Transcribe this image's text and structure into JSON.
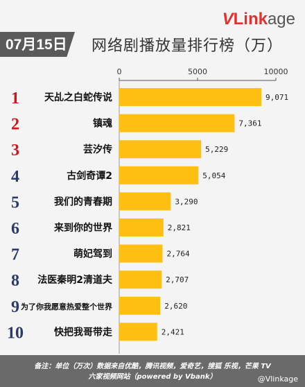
{
  "date_label": "07月15日",
  "logo": {
    "brand_v": "V",
    "brand_link": "Link",
    "brand_age": "age"
  },
  "footer": {
    "line1": "备注：单位（万次）数据来自优酷，腾讯视频，爱奇艺，搜狐 乐视，芒果 TV",
    "line2": "六家视频网站（powered by Vbank）",
    "watermark": "@Vlinkage"
  },
  "colors": {
    "bar": "#fcbf12",
    "rank_red": "#d0141c",
    "rank_blue": "#2b3a67",
    "footer": "#6a6a6a"
  },
  "chart_data": {
    "type": "bar",
    "orientation": "horizontal",
    "title": "网络剧播放量排行榜（万）",
    "xlim": [
      0,
      10000
    ],
    "x_ticks": [
      0,
      5000,
      10000
    ],
    "x_tick_labels": [
      "0",
      "5000",
      "10000"
    ],
    "grid": false,
    "ranks": [
      "1",
      "2",
      "3",
      "4",
      "5",
      "6",
      "7",
      "8",
      "9",
      "10"
    ],
    "categories": [
      "天乩之白蛇传说",
      "镇魂",
      "芸汐传",
      "古剑奇谭2",
      "我们的青春期",
      "来到你的世界",
      "萌妃驾到",
      "法医秦明2清道夫",
      "为了你我愿意热爱整个世界",
      "快把我哥带走"
    ],
    "values": [
      9071,
      7361,
      5229,
      5054,
      3290,
      2821,
      2764,
      2707,
      2620,
      2421
    ],
    "value_labels": [
      "9,071",
      "7,361",
      "5,229",
      "5,054",
      "3,290",
      "2,821",
      "2,764",
      "2,707",
      "2,620",
      "2,421"
    ]
  }
}
